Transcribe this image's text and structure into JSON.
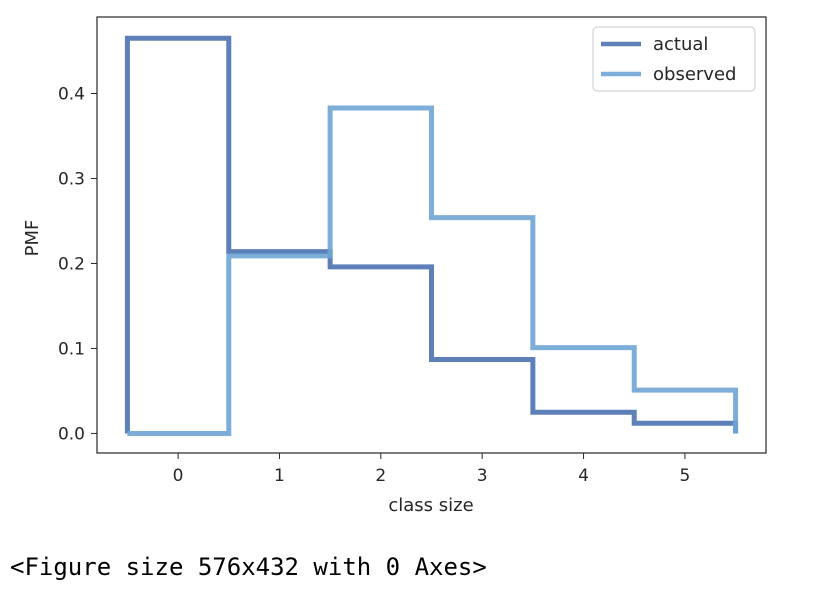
{
  "chart_data": {
    "type": "line",
    "drawstyle": "steps-mid",
    "xlabel": "class size",
    "ylabel": "PMF",
    "xlim": [
      -0.8,
      5.8
    ],
    "ylim": [
      -0.023,
      0.49
    ],
    "xticks": [
      0,
      1,
      2,
      3,
      4,
      5
    ],
    "yticks": [
      0.0,
      0.1,
      0.2,
      0.3,
      0.4
    ],
    "ytick_labels": [
      "0.0",
      "0.1",
      "0.2",
      "0.3",
      "0.4"
    ],
    "legend_position": "top-right",
    "grid": false,
    "series": [
      {
        "name": "actual",
        "color": "#4c72b0",
        "x": [
          0,
          1,
          2,
          3,
          4,
          5
        ],
        "y": [
          0.465,
          0.214,
          0.196,
          0.087,
          0.025,
          0.012
        ]
      },
      {
        "name": "observed",
        "color": "#6fa4d5",
        "x": [
          0,
          1,
          2,
          3,
          4,
          5
        ],
        "y": [
          0.0,
          0.209,
          0.383,
          0.254,
          0.101,
          0.051
        ]
      }
    ]
  },
  "output": {
    "text": "<Figure size 576x432 with 0 Axes>"
  }
}
